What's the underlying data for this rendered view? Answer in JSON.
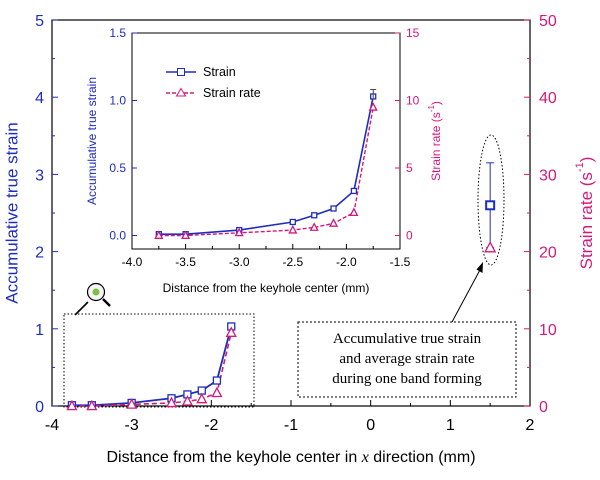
{
  "colors": {
    "blue": "#1f2dbf",
    "magenta": "#d6187a",
    "axis": "#000000",
    "callout_border": "#000000"
  },
  "chart_data": [
    {
      "id": "main",
      "type": "line",
      "xlabel_prefix": "Distance from the keyhole center in",
      "xlabel_var": "x",
      "xlabel_suffix": "direction (mm)",
      "ylabel_left": "Accumulative true strain",
      "ylabel_right_base": "Strain rate (s",
      "ylabel_right_sup": "-1",
      "ylabel_right_end": ")",
      "xlim": [
        -4,
        2
      ],
      "ylim_left": [
        0,
        5
      ],
      "ylim_right": [
        0,
        50
      ],
      "xticks": [
        -4,
        -3,
        -2,
        -1,
        0,
        1,
        2
      ],
      "yticks_left": [
        0,
        1,
        2,
        3,
        4,
        5
      ],
      "yticks_right": [
        0,
        10,
        20,
        30,
        40,
        50
      ],
      "series": [
        {
          "name": "Strain",
          "axis": "left",
          "marker": "square",
          "x": [
            -3.75,
            -3.5,
            -3.0,
            -2.5,
            -2.3,
            -2.12,
            -1.93,
            -1.75
          ],
          "y": [
            0.01,
            0.01,
            0.04,
            0.1,
            0.15,
            0.2,
            0.33,
            1.03
          ]
        },
        {
          "name": "Strain rate",
          "axis": "right",
          "marker": "triangle",
          "x": [
            -3.75,
            -3.5,
            -3.0,
            -2.5,
            -2.3,
            -2.12,
            -1.93,
            -1.75
          ],
          "y": [
            0.0,
            0.0,
            0.2,
            0.4,
            0.6,
            0.9,
            1.7,
            9.5
          ]
        }
      ],
      "highlight_point": {
        "x": 1.5,
        "strain": 2.6,
        "strain_err": 0.55,
        "strain_rate": 20.5
      },
      "callout_lines": [
        "Accumulative true strain",
        "and average strain rate",
        "during one band forming"
      ]
    },
    {
      "id": "inset",
      "type": "line",
      "xlabel": "Distance from the keyhole center (mm)",
      "ylabel_left": "Accumulative true strain",
      "ylabel_right_base": "Strain rate (s",
      "ylabel_right_sup": "-1",
      "ylabel_right_end": ")",
      "xlim": [
        -4.0,
        -1.5
      ],
      "ylim_left": [
        -0.1,
        1.5
      ],
      "ylim_right": [
        -1,
        15
      ],
      "xticks": [
        -4.0,
        -3.5,
        -3.0,
        -2.5,
        -2.0,
        -1.5
      ],
      "xtick_labels": [
        "-4.0",
        "-3.5",
        "-3.0",
        "-2.5",
        "-2.0",
        "-1.5"
      ],
      "yticks_left": [
        0.0,
        0.5,
        1.0,
        1.5
      ],
      "ytick_labels_left": [
        "0.0",
        "0.5",
        "1.0",
        "1.5"
      ],
      "yticks_right": [
        0,
        5,
        10,
        15
      ],
      "legend": {
        "placement": "top-left",
        "entries": [
          "Strain",
          "Strain rate"
        ]
      }
    }
  ]
}
